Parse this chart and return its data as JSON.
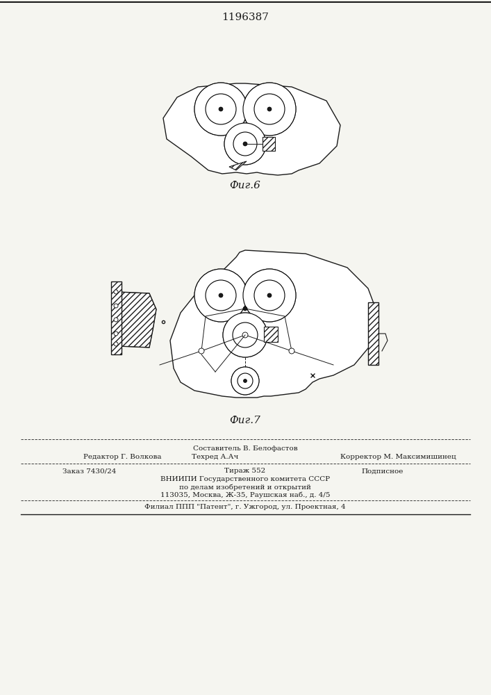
{
  "patent_number": "1196387",
  "fig6_label": "Фиг.6",
  "fig7_label": "Фиг.7",
  "footer_line1_left": "Редактор Г. Волкова",
  "footer_line1_center": "Техред А.Ач",
  "footer_line1_right": "Корректор М. Максимишинец",
  "footer_line0_center": "Составитель В. Белофастов",
  "footer_line2_left": "Заказ 7430/24",
  "footer_line2_center": "Тираж 552",
  "footer_line2_right": "Подписное",
  "footer_line3": "ВНИИПИ Государственного комитета СССР",
  "footer_line4": "по делам изобретений и открытий",
  "footer_line5": "113035, Москва, Ж-35, Раушская наб., д. 4/5",
  "footer_line6": "Филиал ППП \"Патент\", г. Ужгород, ул. Проектная, 4",
  "bg_color": "#f5f5f0",
  "line_color": "#1a1a1a",
  "hatch_color": "#333333"
}
